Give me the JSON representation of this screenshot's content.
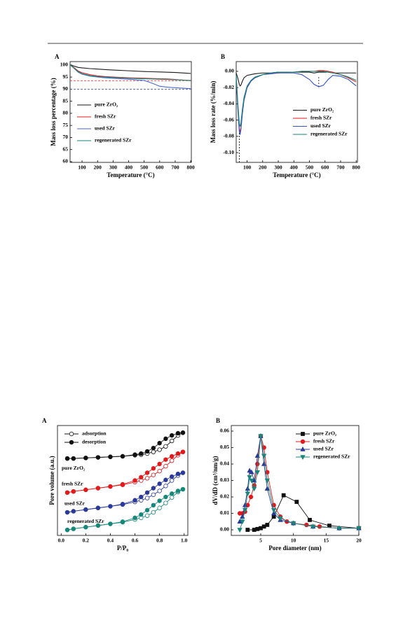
{
  "chart_data": [
    {
      "type": "line",
      "title": "A",
      "xlabel": "Temperature (°C)",
      "ylabel": "Mass loss percentage (%)",
      "xlim": [
        23,
        804
      ],
      "ylim": [
        59.7,
        101.4
      ],
      "xticks": [
        100,
        200,
        300,
        400,
        500,
        600,
        700,
        800
      ],
      "yticks": [
        60,
        65,
        70,
        75,
        80,
        85,
        90,
        95,
        100
      ],
      "legend": "center left",
      "x": [
        25,
        50,
        75,
        100,
        150,
        200,
        250,
        300,
        400,
        500,
        550,
        600,
        650,
        700,
        800
      ],
      "series": [
        {
          "name": "pure ZrO₂",
          "color": "#1a1a1a",
          "values": [
            100,
            99.5,
            99.0,
            98.8,
            98.5,
            98.3,
            98.1,
            97.9,
            97.6,
            97.3,
            97.2,
            97.1,
            97.0,
            96.9,
            96.5
          ]
        },
        {
          "name": "fresh SZr",
          "color": "#e31a1c",
          "values": [
            100,
            98.8,
            97.5,
            96.8,
            96.0,
            95.5,
            95.2,
            95.0,
            94.7,
            94.5,
            94.4,
            94.3,
            94.2,
            94.0,
            93.5
          ]
        },
        {
          "name": "used SZr",
          "color": "#4a6ad0",
          "values": [
            100,
            98.5,
            97.0,
            96.2,
            95.4,
            95.0,
            94.7,
            94.5,
            94.1,
            93.6,
            92.5,
            91.2,
            90.8,
            90.6,
            90.2
          ]
        },
        {
          "name": "regenerated SZr",
          "color": "#17877a",
          "values": [
            100,
            98.6,
            97.2,
            96.4,
            95.6,
            95.2,
            95.0,
            94.8,
            94.5,
            94.3,
            94.2,
            94.1,
            94.0,
            93.9,
            93.6
          ]
        }
      ],
      "hlines": [
        {
          "value": 93.5,
          "color": "#e31a1c"
        },
        {
          "value": 90,
          "color": "#2b3a9a"
        }
      ]
    },
    {
      "type": "line",
      "title": "B",
      "xlabel": "Temperature (°C)",
      "ylabel": "Mass loss rate (%/min)",
      "xlim": [
        30,
        808
      ],
      "ylim": [
        -0.112,
        0.012
      ],
      "xticks": [
        100,
        200,
        300,
        400,
        500,
        600,
        700,
        800
      ],
      "yticks": [
        {
          "value": 0,
          "label": "0.00"
        },
        {
          "value": -0.02,
          "label": "-0.02"
        },
        {
          "value": -0.04,
          "label": "-0.04"
        },
        {
          "value": -0.06,
          "label": "-0.06"
        },
        {
          "value": -0.08,
          "label": "-0.08"
        },
        {
          "value": -0.1,
          "label": "-0.10"
        }
      ],
      "legend": "lower right",
      "x": [
        30,
        40,
        50,
        55,
        60,
        70,
        80,
        100,
        125,
        150,
        200,
        250,
        300,
        400,
        450,
        500,
        530,
        560,
        590,
        620,
        650,
        700,
        750,
        800
      ],
      "series": [
        {
          "name": "pure ZrO₂",
          "color": "#1a1a1a",
          "values": [
            -0.002,
            -0.008,
            -0.016,
            -0.018,
            -0.017,
            -0.012,
            -0.008,
            -0.005,
            -0.004,
            -0.003,
            -0.002,
            -0.002,
            -0.001,
            -0.001,
            -0.001,
            -0.001,
            -0.002,
            -0.001,
            -0.001,
            -0.001,
            -0.002,
            -0.002,
            -0.002,
            -0.002
          ]
        },
        {
          "name": "fresh SZr",
          "color": "#e31a1c",
          "values": [
            -0.005,
            -0.04,
            -0.07,
            -0.075,
            -0.07,
            -0.05,
            -0.035,
            -0.02,
            -0.012,
            -0.008,
            -0.004,
            -0.003,
            -0.002,
            -0.001,
            0,
            0,
            0,
            0.001,
            0.001,
            0,
            -0.001,
            -0.004,
            -0.008,
            -0.013
          ]
        },
        {
          "name": "used SZr",
          "color": "#3050c8",
          "values": [
            -0.006,
            -0.045,
            -0.074,
            -0.078,
            -0.072,
            -0.052,
            -0.036,
            -0.02,
            -0.012,
            -0.008,
            -0.004,
            -0.003,
            -0.002,
            -0.002,
            -0.004,
            -0.01,
            -0.016,
            -0.019,
            -0.017,
            -0.01,
            -0.005,
            -0.006,
            -0.01,
            -0.018
          ]
        },
        {
          "name": "regenerated SZr",
          "color": "#17877a",
          "values": [
            -0.005,
            -0.038,
            -0.064,
            -0.068,
            -0.064,
            -0.046,
            -0.032,
            -0.018,
            -0.011,
            -0.007,
            -0.004,
            -0.002,
            -0.001,
            -0.001,
            0,
            0,
            0,
            0,
            0,
            -0.001,
            -0.002,
            -0.004,
            -0.007,
            -0.011
          ]
        }
      ],
      "vlines": [
        {
          "x": 50,
          "from": -0.112,
          "to": -0.074
        },
        {
          "x": 560,
          "from": -0.007,
          "to": -0.021
        }
      ]
    },
    {
      "type": "line",
      "title": "A",
      "xlabel": "P/P₀",
      "ylabel": "Pore volume (a.u.)",
      "xlim": [
        -0.03,
        1.03
      ],
      "ylim": [
        0,
        10
      ],
      "xticks": [
        {
          "value": 0,
          "label": "0.0"
        },
        {
          "value": 0.2,
          "label": "0.2"
        },
        {
          "value": 0.4,
          "label": "0.4"
        },
        {
          "value": 0.6,
          "label": "0.6"
        },
        {
          "value": 0.8,
          "label": "0.8"
        },
        {
          "value": 1,
          "label": "1.0"
        }
      ],
      "legend": "upper left",
      "legend_entries": [
        {
          "name": "adsorption",
          "filled": false
        },
        {
          "name": "desorption",
          "filled": true
        }
      ],
      "x": [
        0.05,
        0.1,
        0.2,
        0.3,
        0.4,
        0.5,
        0.6,
        0.65,
        0.7,
        0.75,
        0.8,
        0.85,
        0.9,
        0.95,
        0.99
      ],
      "series": [
        {
          "name": "pure ZrO₂",
          "color": "#111111",
          "adsorption": [
            7.0,
            7.0,
            7.05,
            7.1,
            7.15,
            7.2,
            7.3,
            7.35,
            7.45,
            7.6,
            7.8,
            8.1,
            8.6,
            9.1,
            9.35
          ],
          "desorption": [
            7.0,
            7.0,
            7.05,
            7.1,
            7.15,
            7.2,
            7.35,
            7.45,
            7.65,
            7.95,
            8.4,
            8.8,
            9.1,
            9.3,
            9.35
          ]
        },
        {
          "name": "fresh SZr",
          "color": "#e31a1c",
          "adsorption": [
            3.9,
            4.0,
            4.15,
            4.3,
            4.45,
            4.6,
            4.85,
            5.0,
            5.2,
            5.5,
            5.85,
            6.3,
            6.8,
            7.3,
            7.6
          ],
          "desorption": [
            3.9,
            4.0,
            4.15,
            4.3,
            4.45,
            4.65,
            5.0,
            5.3,
            5.7,
            6.1,
            6.5,
            6.9,
            7.2,
            7.45,
            7.6
          ]
        },
        {
          "name": "used SZr",
          "color": "#2b3a9a",
          "adsorption": [
            2.1,
            2.2,
            2.35,
            2.5,
            2.65,
            2.8,
            3.05,
            3.2,
            3.4,
            3.7,
            4.05,
            4.5,
            5.0,
            5.45,
            5.7
          ],
          "desorption": [
            2.1,
            2.2,
            2.35,
            2.5,
            2.65,
            2.85,
            3.2,
            3.5,
            3.9,
            4.3,
            4.7,
            5.05,
            5.35,
            5.6,
            5.7
          ]
        },
        {
          "name": "regenerated SZr",
          "color": "#17877a",
          "adsorption": [
            0.5,
            0.6,
            0.75,
            0.9,
            1.05,
            1.2,
            1.45,
            1.6,
            1.8,
            2.1,
            2.5,
            2.95,
            3.45,
            3.95,
            4.2
          ],
          "desorption": [
            0.5,
            0.6,
            0.75,
            0.9,
            1.05,
            1.25,
            1.6,
            1.9,
            2.3,
            2.75,
            3.15,
            3.5,
            3.8,
            4.05,
            4.2
          ]
        }
      ]
    },
    {
      "type": "line",
      "title": "B",
      "xlabel": "Pore diameter (nm)",
      "ylabel": "dV/dD (cm³/nm/g)",
      "xlim": [
        0.5,
        20
      ],
      "ylim": [
        -0.0034,
        0.0634
      ],
      "xticks": [
        5,
        10,
        15,
        20
      ],
      "yticks": [
        {
          "value": 0,
          "label": "0.00"
        },
        {
          "value": 0.01,
          "label": "0.01"
        },
        {
          "value": 0.02,
          "label": "0.02"
        },
        {
          "value": 0.03,
          "label": "0.03"
        },
        {
          "value": 0.04,
          "label": "0.04"
        },
        {
          "value": 0.05,
          "label": "0.05"
        },
        {
          "value": 0.06,
          "label": "0.06"
        }
      ],
      "legend": "upper right",
      "series": [
        {
          "name": "pure ZrO₂",
          "color": "#111111",
          "marker": "square",
          "x": [
            3,
            4,
            4.5,
            5,
            5.5,
            6,
            7,
            8.5,
            10.5,
            12.5,
            15.5,
            20
          ],
          "values": [
            0,
            0,
            0.0005,
            0.001,
            0.002,
            0.003,
            0.008,
            0.021,
            0.017,
            0.006,
            0.0025,
            0.001
          ]
        },
        {
          "name": "fresh SZr",
          "color": "#e31a1c",
          "marker": "circle",
          "x": [
            1.8,
            2.2,
            2.6,
            3,
            3.5,
            4,
            4.5,
            5,
            5.5,
            6,
            7,
            8,
            9,
            10,
            12,
            14,
            17,
            20
          ],
          "values": [
            0.01,
            0.01,
            0.011,
            0.015,
            0.02,
            0.027,
            0.04,
            0.057,
            0.05,
            0.035,
            0.015,
            0.008,
            0.005,
            0.004,
            0.003,
            0.002,
            0.001,
            0.001
          ]
        },
        {
          "name": "used SZr",
          "color": "#2b3a9a",
          "marker": "triangle-up",
          "x": [
            1.8,
            2.2,
            2.6,
            3,
            3.3,
            3.6,
            4,
            4.5,
            5,
            5.5,
            6,
            7,
            8,
            10,
            13,
            17,
            20
          ],
          "values": [
            0.005,
            0.008,
            0.015,
            0.025,
            0.036,
            0.035,
            0.03,
            0.045,
            0.057,
            0.04,
            0.025,
            0.01,
            0.006,
            0.004,
            0.002,
            0.001,
            0.001
          ]
        },
        {
          "name": "regenerated SZr",
          "color": "#17877a",
          "marker": "triangle-down",
          "x": [
            1.8,
            2.2,
            2.6,
            3,
            3.3,
            3.6,
            4,
            4.5,
            5,
            5.5,
            6,
            7,
            8,
            10,
            13,
            17,
            20
          ],
          "values": [
            0,
            0.005,
            0.012,
            0.022,
            0.032,
            0.03,
            0.025,
            0.035,
            0.057,
            0.045,
            0.03,
            0.012,
            0.007,
            0.004,
            0.002,
            0.001,
            0.001
          ]
        }
      ]
    }
  ]
}
